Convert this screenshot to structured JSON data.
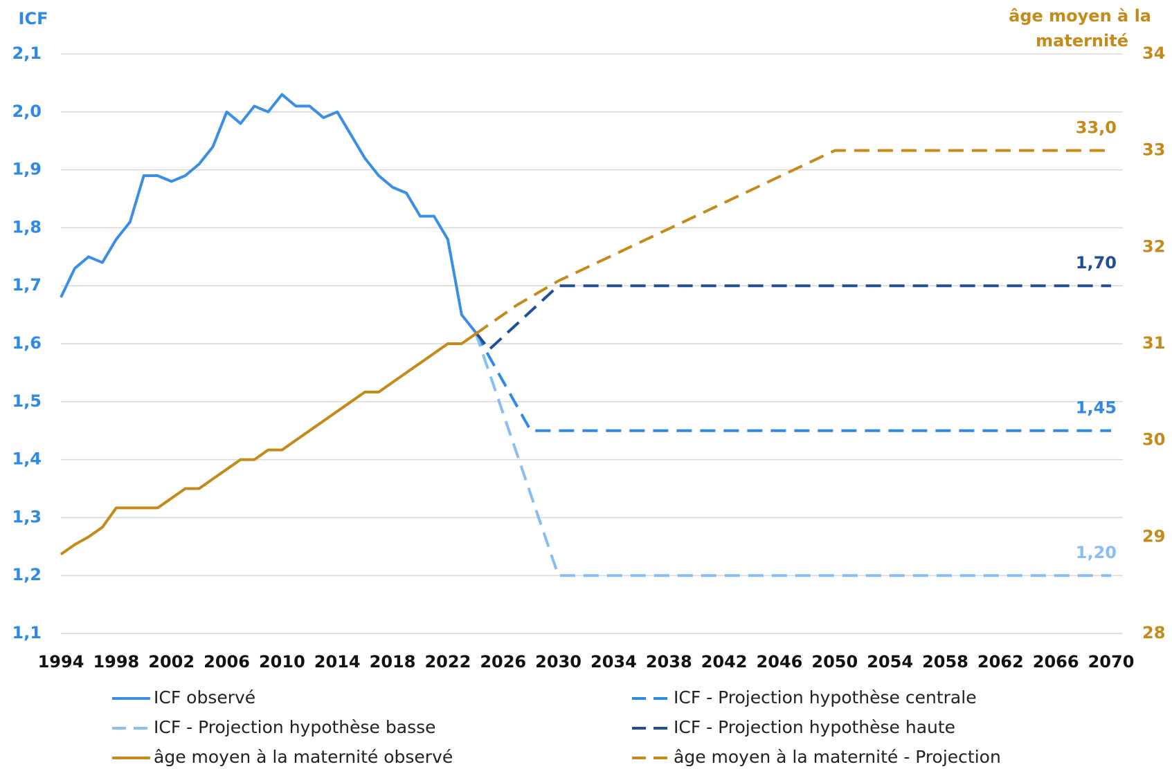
{
  "chart_data": {
    "type": "line",
    "title": "ICF",
    "y2label": [
      "âge moyen à la",
      "maternité"
    ],
    "xlim": [
      1994,
      2070
    ],
    "xticks": [
      1994,
      1998,
      2002,
      2006,
      2010,
      2014,
      2018,
      2022,
      2026,
      2030,
      2034,
      2038,
      2042,
      2046,
      2050,
      2054,
      2058,
      2062,
      2066,
      2070
    ],
    "ylim": [
      1.1,
      2.1
    ],
    "yticks": [
      {
        "value": 1.1,
        "label": "1,1"
      },
      {
        "value": 1.2,
        "label": "1,2"
      },
      {
        "value": 1.3,
        "label": "1,3"
      },
      {
        "value": 1.4,
        "label": "1,4"
      },
      {
        "value": 1.5,
        "label": "1,5"
      },
      {
        "value": 1.6,
        "label": "1,6"
      },
      {
        "value": 1.7,
        "label": "1,7"
      },
      {
        "value": 1.8,
        "label": "1,8"
      },
      {
        "value": 1.9,
        "label": "1,9"
      },
      {
        "value": 2.0,
        "label": "2,0"
      },
      {
        "value": 2.1,
        "label": "2,1"
      }
    ],
    "y2lim": [
      28,
      34
    ],
    "y2ticks": [
      28,
      29,
      30,
      31,
      32,
      33,
      34
    ],
    "grid": true,
    "series": [
      {
        "name": "ICF observé",
        "color": "#3a8ee6",
        "dashed": false,
        "x": [
          1994,
          1995,
          1996,
          1997,
          1998,
          1999,
          2000,
          2001,
          2002,
          2003,
          2004,
          2005,
          2006,
          2007,
          2008,
          2009,
          2010,
          2011,
          2012,
          2013,
          2014,
          2015,
          2016,
          2017,
          2018,
          2019,
          2020,
          2021,
          2022,
          2023,
          2024
        ],
        "values": [
          1.68,
          1.73,
          1.75,
          1.74,
          1.78,
          1.81,
          1.89,
          1.89,
          1.88,
          1.89,
          1.91,
          1.94,
          2.0,
          1.98,
          2.01,
          2.0,
          2.03,
          2.01,
          2.01,
          1.99,
          2.0,
          1.96,
          1.92,
          1.89,
          1.87,
          1.86,
          1.82,
          1.82,
          1.78,
          1.65,
          1.62
        ]
      },
      {
        "name": "ICF - Projection hypothèse centrale",
        "color": "#2e8ae6",
        "dashed": true,
        "x": [
          2024,
          2028,
          2070
        ],
        "values": [
          1.62,
          1.45,
          1.45
        ],
        "value_labels": [
          null,
          null,
          "1,45"
        ]
      },
      {
        "name": "ICF - Projection hypothèse basse",
        "color": "#88bff2",
        "dashed": true,
        "x": [
          2024,
          2030,
          2070
        ],
        "values": [
          1.62,
          1.2,
          1.2
        ],
        "value_labels": [
          null,
          null,
          "1,20"
        ]
      },
      {
        "name": "ICF - Projection hypothèse haute",
        "color": "#1f4e9a",
        "dashed": true,
        "x": [
          2024,
          2025,
          2030,
          2070
        ],
        "values": [
          1.62,
          1.59,
          1.7,
          1.7
        ],
        "value_labels": [
          null,
          null,
          null,
          "1,70"
        ]
      },
      {
        "name": "âge moyen à la maternité observé",
        "color": "#c48a1a",
        "dashed": false,
        "axis": "y2",
        "x": [
          1994,
          1995,
          1996,
          1997,
          1998,
          1999,
          2000,
          2001,
          2002,
          2003,
          2004,
          2005,
          2006,
          2007,
          2008,
          2009,
          2010,
          2011,
          2012,
          2013,
          2014,
          2015,
          2016,
          2017,
          2018,
          2019,
          2020,
          2021,
          2022,
          2023,
          2024
        ],
        "values": [
          28.82,
          28.92,
          29.0,
          29.1,
          29.3,
          29.3,
          29.3,
          29.3,
          29.4,
          29.5,
          29.5,
          29.6,
          29.7,
          29.8,
          29.8,
          29.9,
          29.9,
          30.0,
          30.1,
          30.2,
          30.3,
          30.4,
          30.5,
          30.5,
          30.6,
          30.7,
          30.8,
          30.9,
          31.0,
          31.0,
          31.1
        ]
      },
      {
        "name": "âge moyen à la maternité - Projection",
        "color": "#c48a1a",
        "dashed": true,
        "axis": "y2",
        "x": [
          2024,
          2027,
          2030,
          2050,
          2070
        ],
        "values": [
          31.1,
          31.4,
          31.65,
          33.0,
          33.0
        ],
        "value_labels": [
          null,
          null,
          null,
          null,
          "33,0"
        ]
      }
    ]
  }
}
